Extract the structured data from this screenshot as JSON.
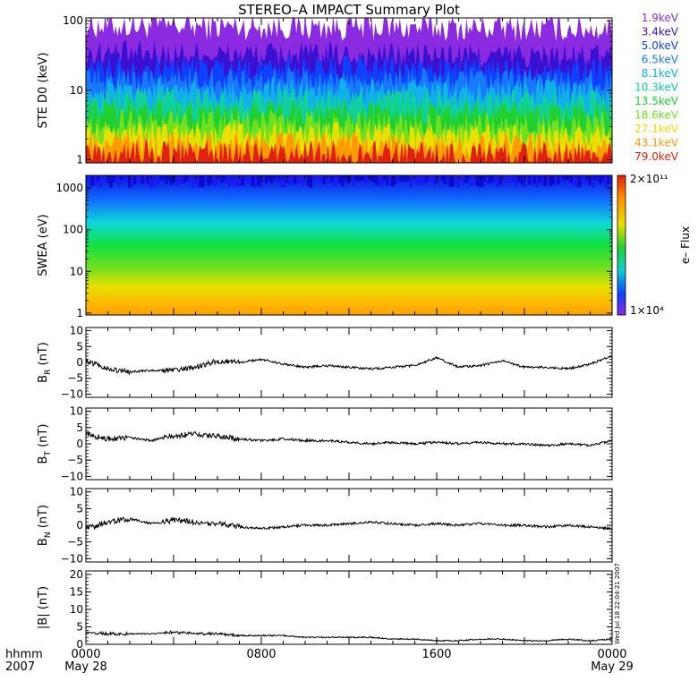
{
  "title": "STEREO–A IMPACT Summary Plot",
  "colors": {
    "axis": "#000000",
    "trace": "#000000"
  },
  "chart_data": [
    {
      "id": "ste",
      "type": "area",
      "ylabel": "STE D0 (keV)",
      "yscale": "log",
      "ylim": [
        0.9,
        110
      ],
      "yticks": [
        {
          "v": 1,
          "label": "1"
        },
        {
          "v": 10,
          "label": "10"
        },
        {
          "v": 100,
          "label": "100"
        }
      ],
      "series": [
        {
          "name": "1.9keV",
          "color": "#8a2be2",
          "level": 85
        },
        {
          "name": "3.4keV",
          "color": "#3b10d0",
          "level": 34
        },
        {
          "name": "5.0keV",
          "color": "#1040ff",
          "level": 22
        },
        {
          "name": "6.5keV",
          "color": "#1878ff",
          "level": 15
        },
        {
          "name": "8.1keV",
          "color": "#10b0e8",
          "level": 10.5
        },
        {
          "name": "10.3keV",
          "color": "#10d0a0",
          "level": 7.5
        },
        {
          "name": "13.5keV",
          "color": "#20d030",
          "level": 5.0
        },
        {
          "name": "18.6keV",
          "color": "#70e020",
          "level": 3.5
        },
        {
          "name": "27.1keV",
          "color": "#e8e000",
          "level": 2.4
        },
        {
          "name": "43.1keV",
          "color": "#ff9a00",
          "level": 1.7
        },
        {
          "name": "79.0keV",
          "color": "#e02010",
          "level": 1.3
        }
      ]
    },
    {
      "id": "swea",
      "type": "heatmap",
      "ylabel": "SWEA (eV)",
      "yscale": "log",
      "ylim": [
        0.9,
        2000
      ],
      "yticks": [
        {
          "v": 1,
          "label": "1"
        },
        {
          "v": 10,
          "label": "10"
        },
        {
          "v": 100,
          "label": "100"
        },
        {
          "v": 1000,
          "label": "1000"
        }
      ],
      "colorbar": {
        "label": "e– Flux",
        "max_label": "2×10¹¹",
        "min_label": "1×10⁴"
      }
    },
    {
      "id": "br",
      "type": "line",
      "ylabel": "Bᵣ (nT)",
      "ylabel_main": "B",
      "ylabel_sub": "R",
      "ylabel_unit": "(nT)",
      "ylim": [
        -11,
        11
      ],
      "yticks": [
        {
          "v": 10,
          "label": "10"
        },
        {
          "v": 5,
          "label": "5"
        },
        {
          "v": 0,
          "label": "0"
        },
        {
          "v": -5,
          "label": "−5"
        },
        {
          "v": -10,
          "label": "−10"
        }
      ],
      "x": [
        0,
        1,
        2,
        3,
        4,
        5,
        6,
        7,
        8,
        9,
        10,
        11,
        12,
        13,
        14,
        15,
        16,
        17,
        18,
        19,
        20,
        21,
        22,
        23,
        24
      ],
      "y": [
        0.5,
        -2,
        -3,
        -2.5,
        -2.5,
        -1.5,
        0.5,
        0,
        1,
        -0.5,
        -1.5,
        -1,
        -1.5,
        -2,
        -1.5,
        -1,
        1.5,
        -1.5,
        -1,
        0.5,
        -1.5,
        -1.5,
        -2,
        -0.5,
        2
      ]
    },
    {
      "id": "bt",
      "type": "line",
      "ylabel": "Bₜ (nT)",
      "ylabel_main": "B",
      "ylabel_sub": "T",
      "ylabel_unit": "(nT)",
      "ylim": [
        -11,
        11
      ],
      "yticks": [
        {
          "v": 10,
          "label": "10"
        },
        {
          "v": 5,
          "label": "5"
        },
        {
          "v": 0,
          "label": "0"
        },
        {
          "v": -5,
          "label": "−5"
        },
        {
          "v": -10,
          "label": "−10"
        }
      ],
      "x": [
        0,
        1,
        2,
        3,
        4,
        5,
        6,
        7,
        8,
        9,
        10,
        11,
        12,
        13,
        14,
        15,
        16,
        17,
        18,
        19,
        20,
        21,
        22,
        23,
        24
      ],
      "y": [
        3,
        1.5,
        2,
        1,
        2.5,
        3,
        2.5,
        1.5,
        1,
        1.5,
        1,
        1,
        0.5,
        0,
        0.5,
        0,
        0.5,
        0,
        0.5,
        0,
        0,
        -0.5,
        0,
        -0.5,
        1
      ]
    },
    {
      "id": "bn",
      "type": "line",
      "ylabel": "Bₙ (nT)",
      "ylabel_main": "B",
      "ylabel_sub": "N",
      "ylabel_unit": "(nT)",
      "ylim": [
        -11,
        11
      ],
      "yticks": [
        {
          "v": 10,
          "label": "10"
        },
        {
          "v": 5,
          "label": "5"
        },
        {
          "v": 0,
          "label": "0"
        },
        {
          "v": -5,
          "label": "−5"
        },
        {
          "v": -10,
          "label": "−10"
        }
      ],
      "x": [
        0,
        1,
        2,
        3,
        4,
        5,
        6,
        7,
        8,
        9,
        10,
        11,
        12,
        13,
        14,
        15,
        16,
        17,
        18,
        19,
        20,
        21,
        22,
        23,
        24
      ],
      "y": [
        -1,
        1,
        2,
        0.5,
        1.5,
        1,
        0.5,
        -0.5,
        -1,
        -0.5,
        0,
        0,
        0.5,
        1,
        0.5,
        0,
        0.5,
        0,
        0.5,
        0,
        0,
        -0.5,
        0,
        -0.5,
        -1
      ]
    },
    {
      "id": "bmag",
      "type": "line",
      "ylabel": "|B| (nT)",
      "ylabel_main": "|B|",
      "ylabel_sub": "",
      "ylabel_unit": "(nT)",
      "ylim": [
        0,
        21
      ],
      "yticks": [
        {
          "v": 20,
          "label": "20"
        },
        {
          "v": 15,
          "label": "15"
        },
        {
          "v": 10,
          "label": "10"
        },
        {
          "v": 5,
          "label": "5"
        },
        {
          "v": 0,
          "label": "0"
        }
      ],
      "x": [
        0,
        1,
        2,
        3,
        4,
        5,
        6,
        7,
        8,
        9,
        10,
        11,
        12,
        13,
        14,
        15,
        16,
        17,
        18,
        19,
        20,
        21,
        22,
        23,
        24
      ],
      "y": [
        3.5,
        3,
        3,
        3,
        3.5,
        3,
        3,
        2.5,
        2.5,
        2.5,
        2,
        2,
        2,
        2,
        1.5,
        1.5,
        1,
        1,
        1.5,
        1.5,
        1,
        1,
        1.5,
        1,
        1.5
      ],
      "annotation": "Wed Jul 18 22:04:21 2007"
    }
  ],
  "xaxis": {
    "range_hours": [
      0,
      24
    ],
    "labels": [
      {
        "h": 0,
        "top": "0000",
        "bottom": "May 28"
      },
      {
        "h": 8,
        "top": "0800",
        "bottom": ""
      },
      {
        "h": 16,
        "top": "1600",
        "bottom": ""
      },
      {
        "h": 24,
        "top": "0000",
        "bottom": "May 29"
      }
    ],
    "left_labels": [
      "hhmm",
      "2007"
    ]
  }
}
